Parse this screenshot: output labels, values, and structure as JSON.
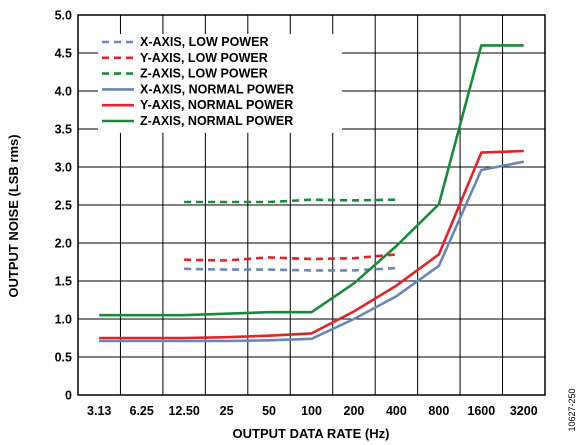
{
  "figure_id": "10627-250",
  "chart_data": {
    "type": "line",
    "xlabel": "OUTPUT DATA RATE (Hz)",
    "ylabel": "OUTPUT NOISE (LSB rms)",
    "categories": [
      "3.13",
      "6.25",
      "12.50",
      "25",
      "50",
      "100",
      "200",
      "400",
      "800",
      "1600",
      "3200"
    ],
    "ylim": [
      0,
      5.0
    ],
    "yticks": [
      "0",
      "0.5",
      "1.0",
      "1.5",
      "2.0",
      "2.5",
      "3.0",
      "3.5",
      "4.0",
      "4.5",
      "5.0"
    ],
    "grid": true,
    "legend_position": "top-left",
    "series": [
      {
        "name": "X-AXIS, LOW POWER",
        "color": "#6a86b8",
        "dashed": true,
        "values": [
          null,
          null,
          1.66,
          1.65,
          1.65,
          1.64,
          1.64,
          1.67,
          null,
          null,
          null
        ]
      },
      {
        "name": "Y-AXIS, LOW POWER",
        "color": "#e0242c",
        "dashed": true,
        "values": [
          null,
          null,
          1.78,
          1.77,
          1.81,
          1.79,
          1.8,
          1.85,
          null,
          null,
          null
        ]
      },
      {
        "name": "Z-AXIS, LOW POWER",
        "color": "#1a8a3a",
        "dashed": true,
        "values": [
          null,
          null,
          2.54,
          2.54,
          2.54,
          2.57,
          2.56,
          2.57,
          null,
          null,
          null
        ]
      },
      {
        "name": "X-AXIS, NORMAL POWER",
        "color": "#6a86b8",
        "dashed": false,
        "values": [
          0.71,
          0.71,
          0.71,
          0.71,
          0.72,
          0.74,
          1.0,
          1.3,
          1.7,
          2.96,
          3.07
        ]
      },
      {
        "name": "Y-AXIS, NORMAL POWER",
        "color": "#e0242c",
        "dashed": false,
        "values": [
          0.75,
          0.75,
          0.75,
          0.76,
          0.78,
          0.81,
          1.1,
          1.44,
          1.85,
          3.19,
          3.21
        ]
      },
      {
        "name": "Z-AXIS, NORMAL POWER",
        "color": "#1a8a3a",
        "dashed": false,
        "values": [
          1.05,
          1.05,
          1.05,
          1.07,
          1.09,
          1.09,
          1.47,
          1.96,
          2.51,
          4.6,
          4.6
        ]
      }
    ]
  }
}
